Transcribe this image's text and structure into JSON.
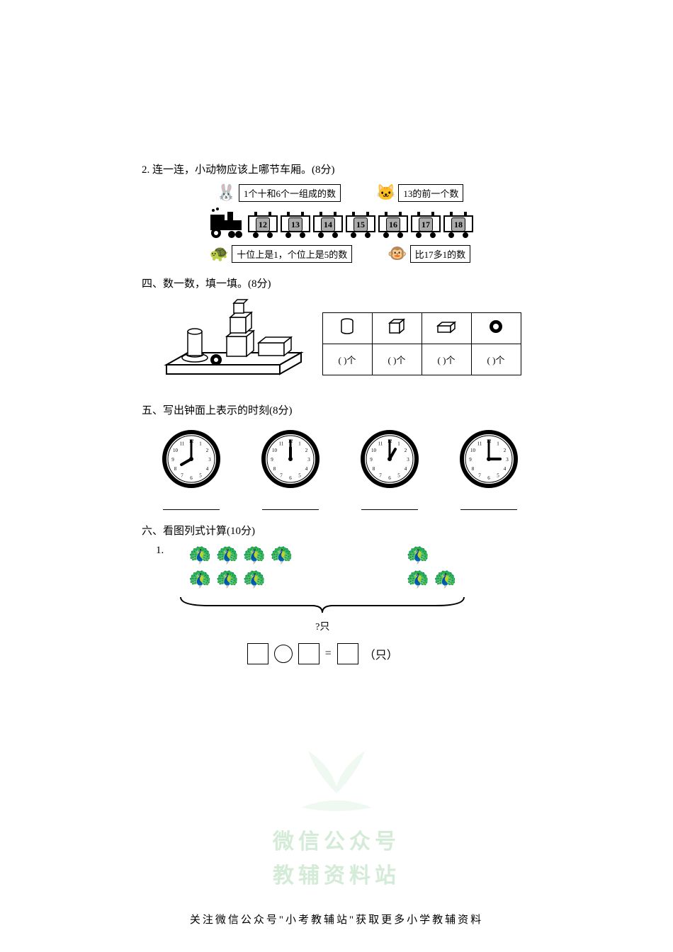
{
  "q2": {
    "title": "2. 连一连，小动物应该上哪节车厢。(8分)",
    "animals_top": [
      {
        "icon": "🐰",
        "label": "1个十和6个一组成的数"
      },
      {
        "icon": "🐱",
        "label": "13的前一个数"
      }
    ],
    "animals_bottom": [
      {
        "icon": "🐢",
        "label": "十位上是1，个位上是5的数"
      },
      {
        "icon": "🐵",
        "label": "比17多1的数"
      }
    ],
    "train_cars": [
      "12",
      "13",
      "14",
      "15",
      "16",
      "17",
      "18"
    ]
  },
  "q4": {
    "title": "四、数一数，填一填。(8分)",
    "scene_shapes": {
      "cylinders": 2,
      "cubes": 3,
      "cuboids": 3,
      "spheres": 1
    },
    "table_count_template": "(     )个"
  },
  "q5": {
    "title": "五、写出钟面上表示的时刻(8分)",
    "clocks": [
      {
        "hour": 8,
        "minute": 0
      },
      {
        "hour": 12,
        "minute": 0
      },
      {
        "hour": 1,
        "minute": 0
      },
      {
        "hour": 3,
        "minute": 0
      }
    ]
  },
  "q6": {
    "title": "六、看图列式计算(10分)",
    "item_num": "1.",
    "left_rows": [
      4,
      3
    ],
    "right_rows": [
      1,
      2
    ],
    "question_text": "?只",
    "unit_text": "（只）"
  },
  "watermark": {
    "line1": "微信公众号",
    "line2": "教辅资料站",
    "leaf_color": "#b9e2c2"
  },
  "footer": "关注微信公众号\"小考教辅站\"获取更多小学教辅资料",
  "colors": {
    "text": "#000000",
    "background": "#ffffff",
    "watermark_text": "#9fd4a7"
  }
}
